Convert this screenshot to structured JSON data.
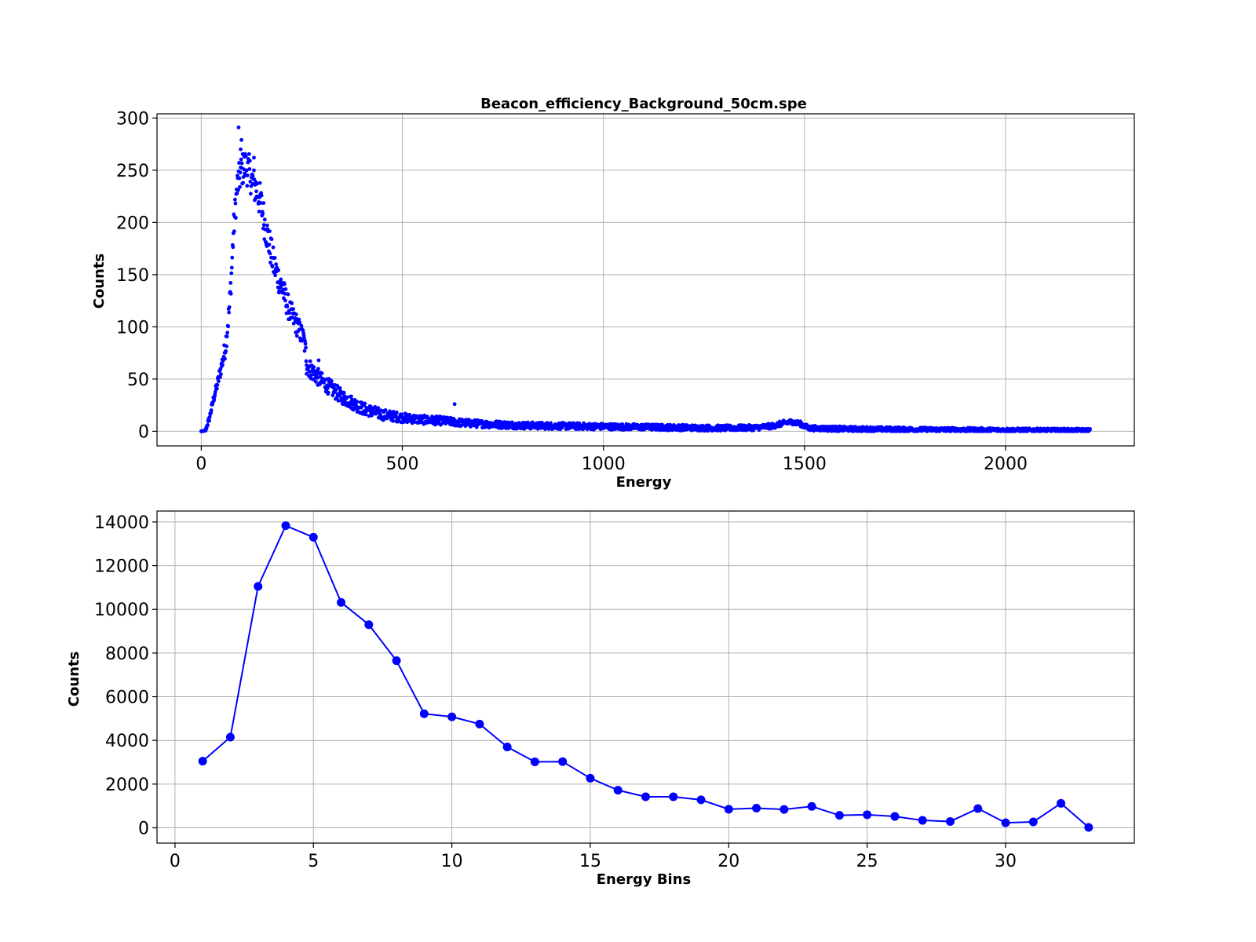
{
  "chart_data": [
    {
      "type": "scatter",
      "title": "Beacon_efficiency_Background_50cm.spe",
      "xlabel": "Energy",
      "ylabel": "Counts",
      "xlim": [
        -110,
        2320
      ],
      "ylim": [
        -14,
        304
      ],
      "xticks": [
        0,
        500,
        1000,
        1500,
        2000
      ],
      "yticks": [
        0,
        50,
        100,
        150,
        200,
        250,
        300
      ],
      "grid": true,
      "color": "#0000ff",
      "x_range": [
        0,
        2210
      ],
      "profile": [
        [
          0,
          0
        ],
        [
          10,
          0
        ],
        [
          20,
          12
        ],
        [
          30,
          30
        ],
        [
          40,
          45
        ],
        [
          50,
          62
        ],
        [
          60,
          80
        ],
        [
          70,
          118
        ],
        [
          75,
          150
        ],
        [
          80,
          190
        ],
        [
          85,
          215
        ],
        [
          90,
          235
        ],
        [
          100,
          250
        ],
        [
          110,
          254
        ],
        [
          120,
          248
        ],
        [
          130,
          236
        ],
        [
          140,
          230
        ],
        [
          150,
          215
        ],
        [
          160,
          195
        ],
        [
          170,
          178
        ],
        [
          180,
          160
        ],
        [
          200,
          138
        ],
        [
          220,
          115
        ],
        [
          240,
          100
        ],
        [
          255,
          88
        ],
        [
          265,
          62
        ],
        [
          300,
          48
        ],
        [
          350,
          33
        ],
        [
          400,
          22
        ],
        [
          450,
          16
        ],
        [
          500,
          13
        ],
        [
          550,
          11
        ],
        [
          600,
          10
        ],
        [
          650,
          8
        ],
        [
          700,
          7
        ],
        [
          800,
          5.5
        ],
        [
          900,
          5
        ],
        [
          1000,
          4.5
        ],
        [
          1100,
          4
        ],
        [
          1200,
          3.5
        ],
        [
          1300,
          3
        ],
        [
          1380,
          3.5
        ],
        [
          1420,
          5
        ],
        [
          1450,
          8
        ],
        [
          1470,
          9
        ],
        [
          1490,
          7
        ],
        [
          1510,
          3
        ],
        [
          1600,
          2.2
        ],
        [
          1800,
          1.6
        ],
        [
          2000,
          1.2
        ],
        [
          2210,
          1
        ]
      ],
      "noise": [
        [
          0,
          0
        ],
        [
          40,
          5
        ],
        [
          90,
          16
        ],
        [
          150,
          18
        ],
        [
          200,
          13
        ],
        [
          250,
          10
        ],
        [
          300,
          8
        ],
        [
          400,
          6
        ],
        [
          500,
          4.5
        ],
        [
          700,
          3.5
        ],
        [
          1000,
          3
        ],
        [
          1500,
          2.5
        ],
        [
          2210,
          1.5
        ]
      ],
      "outliers": [
        [
          93,
          291
        ],
        [
          100,
          279
        ],
        [
          98,
          270
        ],
        [
          131,
          262
        ],
        [
          630,
          26
        ],
        [
          292,
          68
        ],
        [
          320,
          49
        ],
        [
          262,
          55
        ]
      ]
    },
    {
      "type": "line",
      "xlabel": "Energy Bins",
      "ylabel": "Counts",
      "xlim": [
        -0.65,
        34.65
      ],
      "ylim": [
        -700,
        14500
      ],
      "xticks": [
        0,
        5,
        10,
        15,
        20,
        25,
        30
      ],
      "yticks": [
        0,
        2000,
        4000,
        6000,
        8000,
        10000,
        12000,
        14000
      ],
      "grid": true,
      "color": "#0000ff",
      "x": [
        1,
        2,
        3,
        4,
        5,
        6,
        7,
        8,
        9,
        10,
        11,
        12,
        13,
        14,
        15,
        16,
        17,
        18,
        19,
        20,
        21,
        22,
        23,
        24,
        25,
        26,
        27,
        28,
        29,
        30,
        31,
        32,
        33
      ],
      "y": [
        3050,
        4150,
        11050,
        13830,
        13300,
        10320,
        9300,
        7650,
        5220,
        5080,
        4750,
        3700,
        3020,
        3030,
        2270,
        1720,
        1420,
        1420,
        1280,
        850,
        900,
        840,
        980,
        570,
        600,
        520,
        340,
        290,
        880,
        230,
        270,
        1120,
        20
      ]
    }
  ]
}
